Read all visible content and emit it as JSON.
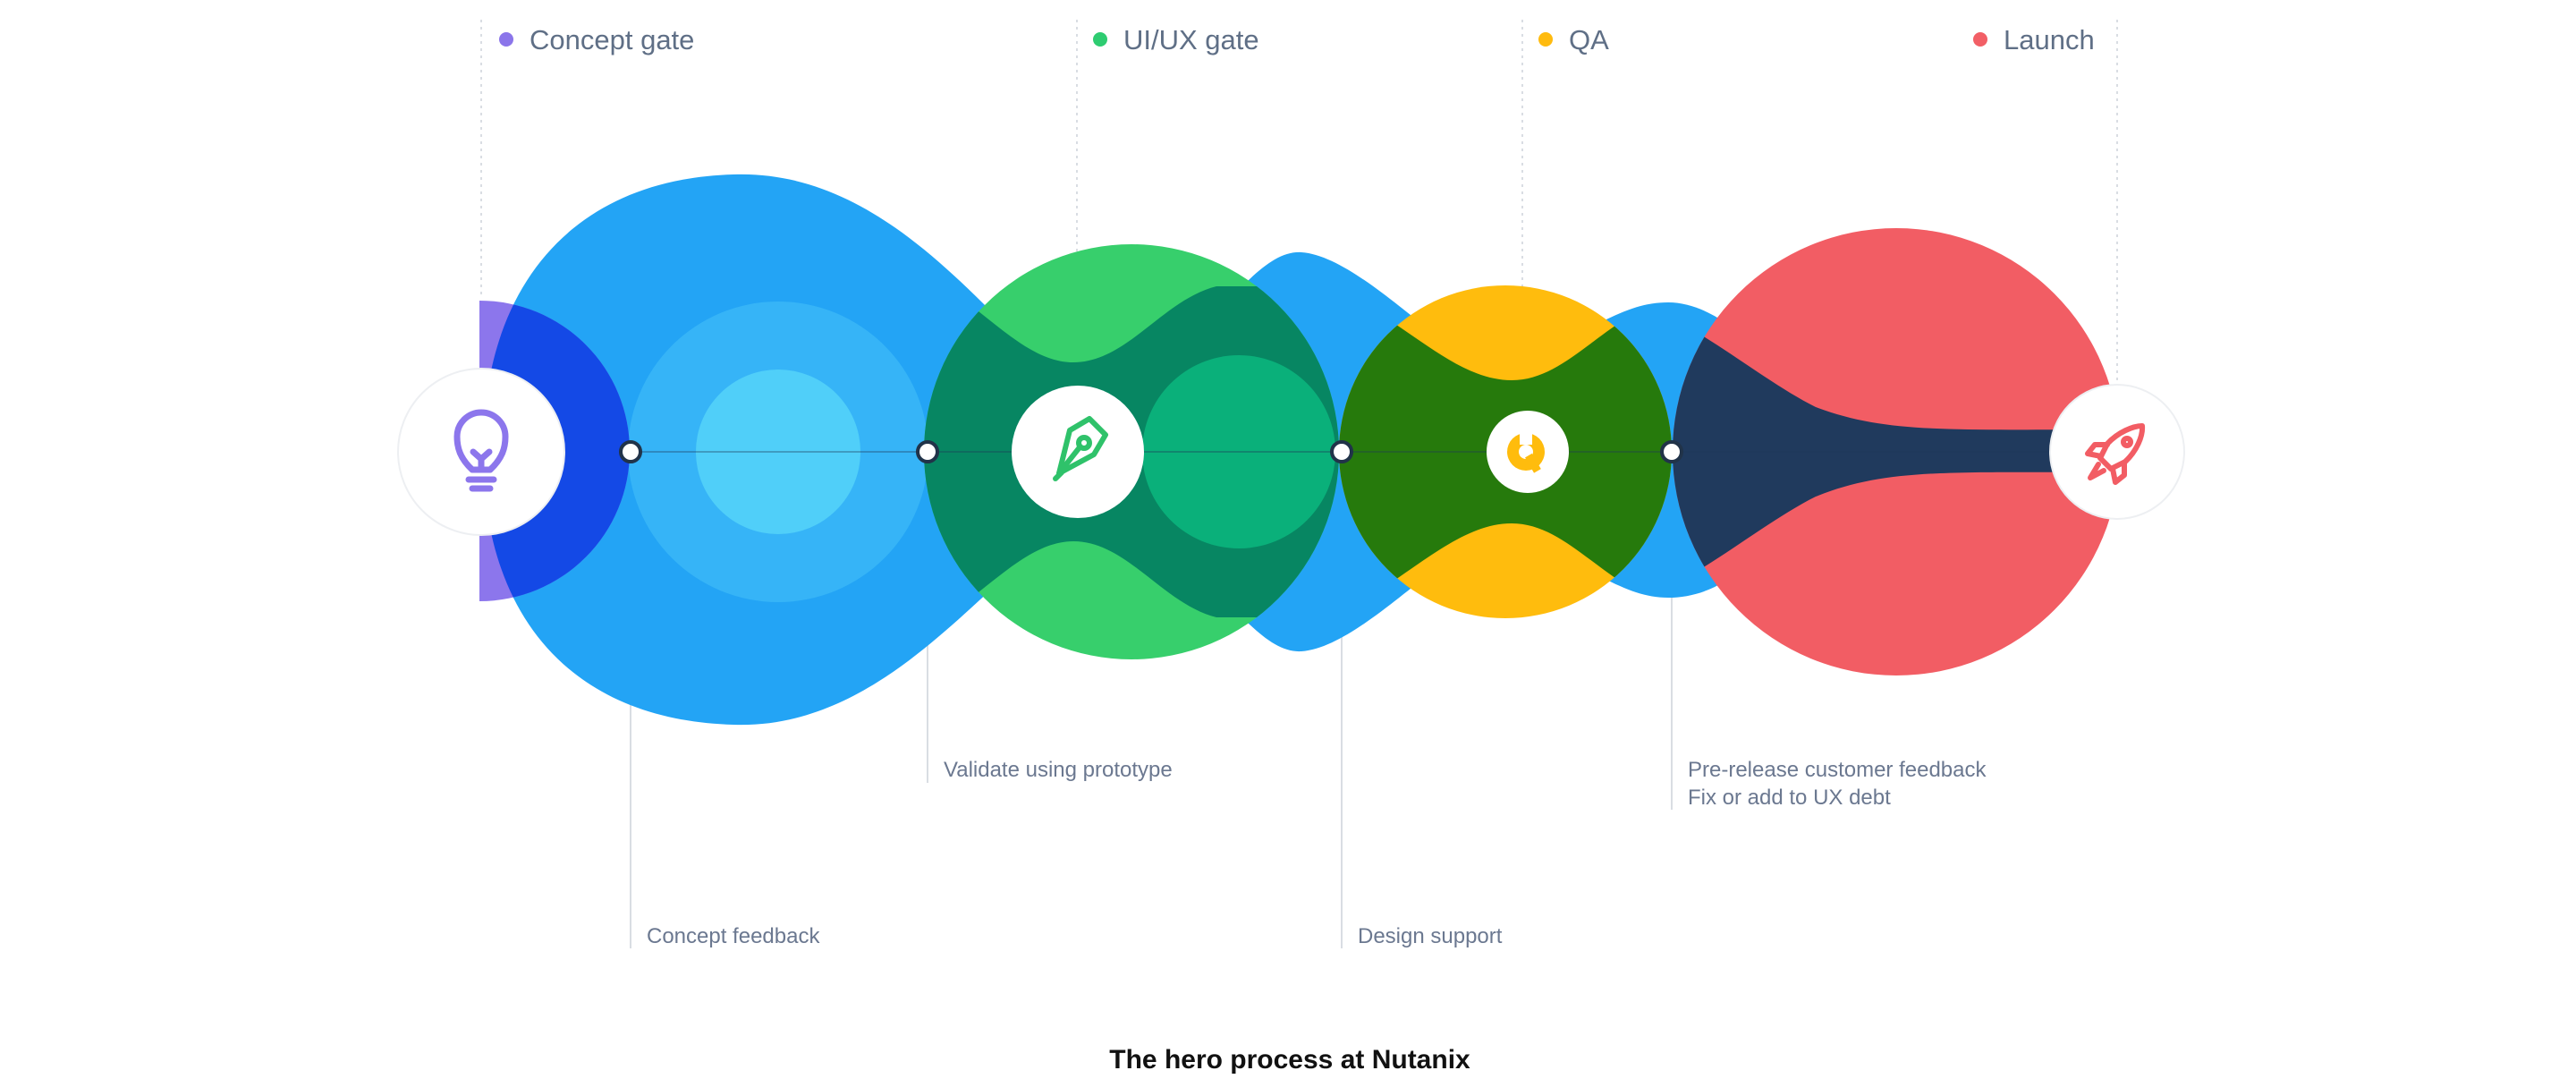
{
  "gates": [
    {
      "label": "Concept gate",
      "color": "#8b75ea"
    },
    {
      "label": "UI/UX gate",
      "color": "#2ecc71"
    },
    {
      "label": "QA",
      "color": "#ffbb0f"
    },
    {
      "label": "Launch",
      "color": "#f25f66"
    }
  ],
  "annotations": [
    {
      "lines": [
        "Concept feedback"
      ]
    },
    {
      "lines": [
        "Validate using prototype"
      ]
    },
    {
      "lines": [
        "Design support"
      ]
    },
    {
      "lines": [
        "Pre-release customer feedback",
        "Fix or add to UX debt"
      ]
    }
  ],
  "icons": [
    "lightbulb-icon",
    "pen-nib-icon",
    "wrench-icon",
    "rocket-icon"
  ],
  "colors": {
    "blue": "#23a4f5",
    "green": "#37cf6c",
    "yellow": "#ffbc0d",
    "red": "#f25d64",
    "purple": "#8c76ec",
    "dark_blue": "#1449e6",
    "dark_green": "#078662",
    "olive": "#267a0c",
    "navy": "#203a5d"
  },
  "caption": "The hero process at Nutanix"
}
